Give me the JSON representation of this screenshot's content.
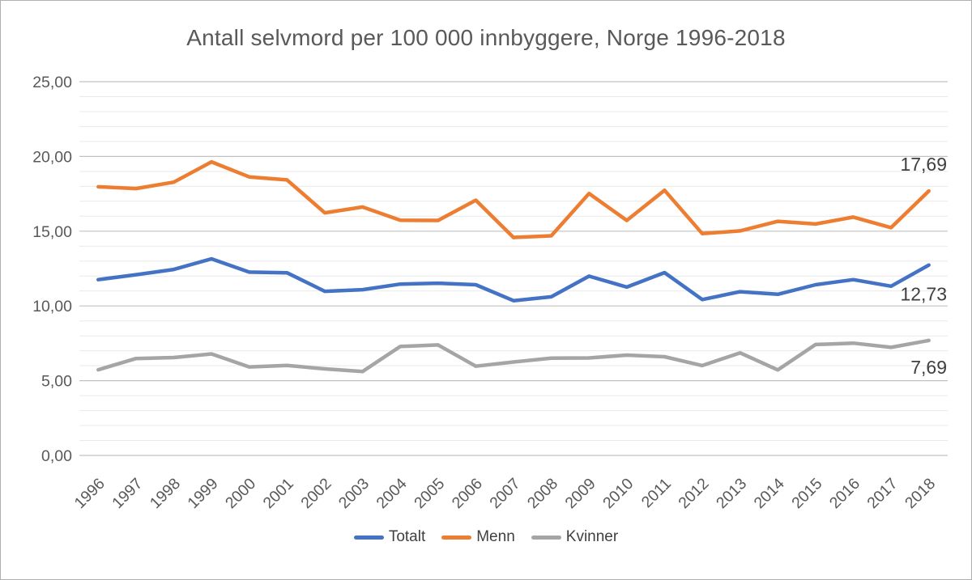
{
  "title": "Antall selvmord per 100 000 innbyggere, Norge 1996-2018",
  "chart_data": {
    "type": "line",
    "x": [
      "1996",
      "1997",
      "1998",
      "1999",
      "2000",
      "2001",
      "2002",
      "2003",
      "2004",
      "2005",
      "2006",
      "2007",
      "2008",
      "2009",
      "2010",
      "2011",
      "2012",
      "2013",
      "2014",
      "2015",
      "2016",
      "2017",
      "2018"
    ],
    "series": [
      {
        "name": "Totalt",
        "color": "#4472C4",
        "end_label": "12,73",
        "values": [
          11.76,
          12.09,
          12.44,
          13.15,
          12.26,
          12.22,
          10.98,
          11.09,
          11.46,
          11.52,
          11.42,
          10.35,
          10.61,
          11.99,
          11.26,
          12.23,
          10.43,
          10.95,
          10.78,
          11.42,
          11.76,
          11.32,
          12.73
        ]
      },
      {
        "name": "Menn",
        "color": "#ED7D31",
        "end_label": "17,69",
        "values": [
          17.97,
          17.85,
          18.28,
          19.64,
          18.63,
          18.43,
          16.23,
          16.62,
          15.73,
          15.72,
          17.07,
          14.58,
          14.69,
          17.52,
          15.72,
          17.74,
          14.84,
          15.02,
          15.66,
          15.48,
          15.94,
          15.24,
          17.69
        ]
      },
      {
        "name": "Kvinner",
        "color": "#A5A5A5",
        "end_label": "7,69",
        "values": [
          5.73,
          6.48,
          6.55,
          6.79,
          5.92,
          6.02,
          5.79,
          5.61,
          7.29,
          7.39,
          5.97,
          6.25,
          6.51,
          6.52,
          6.71,
          6.6,
          6.01,
          6.86,
          5.72,
          7.42,
          7.51,
          7.23,
          7.69
        ]
      }
    ],
    "title": "Antall selvmord per 100 000 innbyggere, Norge 1996-2018",
    "xlabel": "",
    "ylabel": "",
    "ylim": [
      0,
      25
    ],
    "y_major_step": 5,
    "y_minor_step": 1,
    "y_tick_labels": [
      "0,00",
      "5,00",
      "10,00",
      "15,00",
      "20,00",
      "25,00"
    ],
    "grid": true,
    "legend_position": "bottom"
  },
  "colors": {
    "major_grid": "#c2c2c2",
    "minor_grid": "#e9e9e9",
    "axis_text": "#595959",
    "data_label_text": "#3f3f3f"
  }
}
